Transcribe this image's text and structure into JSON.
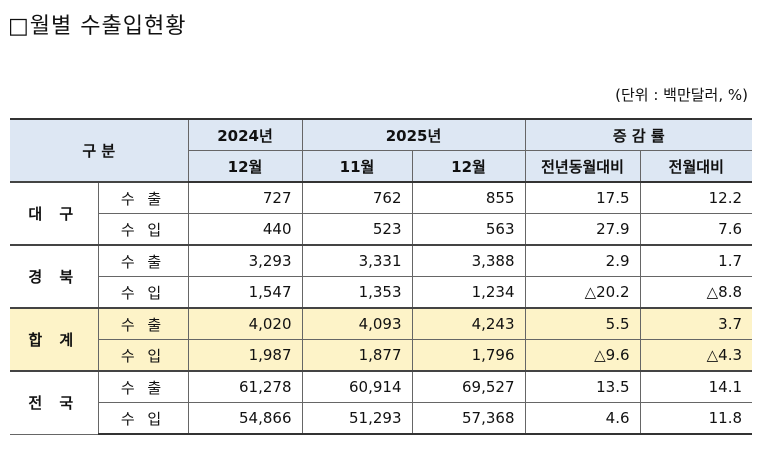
{
  "title": "□월별 수출입현황",
  "unit": "(단위 : 백만달러, %)",
  "table": {
    "header": {
      "label": "구 분",
      "groups": [
        {
          "label": "2024년",
          "columns": [
            "12월"
          ]
        },
        {
          "label": "2025년",
          "columns": [
            "11월",
            "12월"
          ]
        },
        {
          "label": "증 감 률",
          "columns": [
            "전년동월대비",
            "전월대비"
          ]
        }
      ]
    },
    "regions": [
      {
        "name": "대 구",
        "rows": [
          {
            "item": "수 출",
            "cells": [
              "727",
              "762",
              "855",
              "17.5",
              "12.2"
            ]
          },
          {
            "item": "수 입",
            "cells": [
              "440",
              "523",
              "563",
              "27.9",
              "7.6"
            ]
          }
        ]
      },
      {
        "name": "경 북",
        "rows": [
          {
            "item": "수 출",
            "cells": [
              "3,293",
              "3,331",
              "3,388",
              "2.9",
              "1.7"
            ]
          },
          {
            "item": "수 입",
            "cells": [
              "1,547",
              "1,353",
              "1,234",
              "△20.2",
              "△8.8"
            ]
          }
        ]
      },
      {
        "name": "합 계",
        "rows": [
          {
            "item": "수 출",
            "cells": [
              "4,020",
              "4,093",
              "4,243",
              "5.5",
              "3.7"
            ]
          },
          {
            "item": "수 입",
            "cells": [
              "1,987",
              "1,877",
              "1,796",
              "△9.6",
              "△4.3"
            ]
          }
        ]
      },
      {
        "name": "전 국",
        "rows": [
          {
            "item": "수 출",
            "cells": [
              "61,278",
              "60,914",
              "69,527",
              "13.5",
              "14.1"
            ]
          },
          {
            "item": "수 입",
            "cells": [
              "54,866",
              "51,293",
              "57,368",
              "4.6",
              "11.8"
            ]
          }
        ]
      }
    ]
  }
}
